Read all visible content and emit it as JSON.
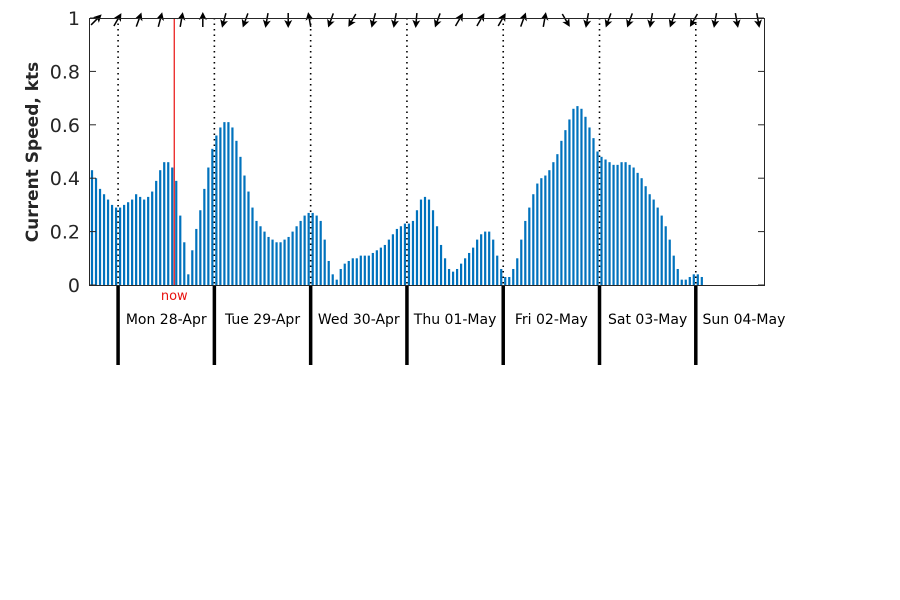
{
  "chart_data": {
    "type": "bar",
    "ylabel": "Current Speed, kts",
    "ylim": [
      0,
      1
    ],
    "yticks": [
      "0",
      "0.2",
      "0.4",
      "0.6",
      "0.8",
      "1"
    ],
    "bar_color": "#0072bd",
    "now_color": "#e8110f",
    "now_label": "now",
    "now_time": "2025-04-28T14:00",
    "start_time": "2025-04-27T17:00",
    "hours_per_bar": 1,
    "midnights": [
      "2025-04-28T00:00",
      "2025-04-29T00:00",
      "2025-04-30T00:00",
      "2025-05-01T00:00",
      "2025-05-02T00:00",
      "2025-05-03T00:00",
      "2025-05-04T00:00"
    ],
    "day_labels": [
      "Mon 28-Apr",
      "Tue 29-Apr",
      "Wed 30-Apr",
      "Thu 01-May",
      "Fri 02-May",
      "Sat 03-May",
      "Sun 04-May"
    ],
    "values": [
      0.43,
      0.4,
      0.36,
      0.34,
      0.32,
      0.3,
      0.29,
      0.29,
      0.3,
      0.31,
      0.32,
      0.34,
      0.33,
      0.32,
      0.33,
      0.35,
      0.39,
      0.43,
      0.46,
      0.46,
      0.44,
      0.39,
      0.26,
      0.16,
      0.04,
      0.13,
      0.21,
      0.28,
      0.36,
      0.44,
      0.51,
      0.56,
      0.59,
      0.61,
      0.61,
      0.59,
      0.54,
      0.48,
      0.41,
      0.35,
      0.29,
      0.24,
      0.22,
      0.2,
      0.18,
      0.17,
      0.16,
      0.16,
      0.17,
      0.18,
      0.2,
      0.22,
      0.24,
      0.26,
      0.27,
      0.27,
      0.26,
      0.24,
      0.17,
      0.09,
      0.04,
      0.02,
      0.06,
      0.08,
      0.09,
      0.1,
      0.1,
      0.11,
      0.11,
      0.11,
      0.12,
      0.13,
      0.14,
      0.15,
      0.17,
      0.19,
      0.21,
      0.22,
      0.23,
      0.23,
      0.24,
      0.28,
      0.32,
      0.33,
      0.32,
      0.28,
      0.22,
      0.15,
      0.1,
      0.06,
      0.05,
      0.06,
      0.08,
      0.1,
      0.12,
      0.14,
      0.17,
      0.19,
      0.2,
      0.2,
      0.17,
      0.11,
      0.06,
      0.03,
      0.03,
      0.06,
      0.1,
      0.17,
      0.24,
      0.29,
      0.34,
      0.38,
      0.4,
      0.41,
      0.43,
      0.46,
      0.49,
      0.54,
      0.58,
      0.62,
      0.66,
      0.67,
      0.66,
      0.63,
      0.59,
      0.55,
      0.5,
      0.48,
      0.47,
      0.46,
      0.45,
      0.45,
      0.46,
      0.46,
      0.45,
      0.44,
      0.42,
      0.4,
      0.37,
      0.34,
      0.32,
      0.29,
      0.26,
      0.22,
      0.17,
      0.11,
      0.06,
      0.02,
      0.02,
      0.03,
      0.04,
      0.04,
      0.03
    ],
    "direction_arrows_deg": [
      45,
      60,
      70,
      75,
      80,
      90,
      255,
      250,
      260,
      270,
      100,
      250,
      240,
      255,
      260,
      265,
      250,
      60,
      60,
      60,
      70,
      80,
      300,
      260,
      250,
      250,
      260,
      250,
      240,
      260,
      280,
      280
    ]
  }
}
